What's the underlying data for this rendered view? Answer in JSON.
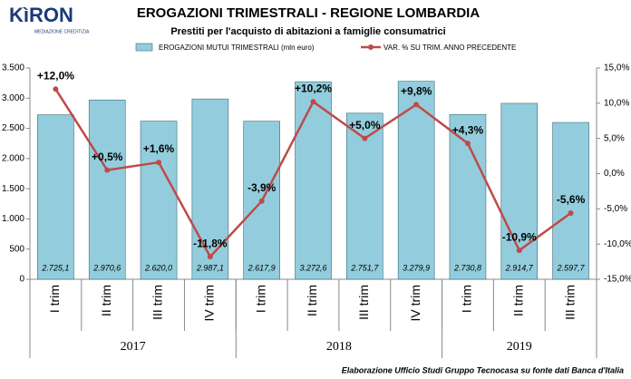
{
  "logo": {
    "name": "KìRON",
    "tagline": "MEDIAZIONE CREDITIZIA"
  },
  "footer": "Elaborazione  Ufficio  Studi Gruppo Tecnocasa  su fonte dati Banca d'Italia",
  "chart_data": {
    "type": "bar",
    "title": "EROGAZIONI TRIMESTRALI - REGIONE LOMBARDIA",
    "subtitle": "Prestiti per l'acquisto di abitazioni a famiglie consumatrici",
    "category_groups": [
      {
        "label": "2017",
        "categories": [
          "I trim",
          "II trim",
          "III trim",
          "IV trim"
        ]
      },
      {
        "label": "2018",
        "categories": [
          "I trim",
          "II trim",
          "III trim",
          "IV trim"
        ]
      },
      {
        "label": "2019",
        "categories": [
          "I trim",
          "II trim",
          "III trim"
        ]
      }
    ],
    "series": [
      {
        "name": "EROGAZIONI MUTUI TRIMESTRALI (mln euro)",
        "type": "bar",
        "color": "#93cddd",
        "values": [
          2725.1,
          2970.6,
          2620.0,
          2987.1,
          2617.9,
          3272.6,
          2751.7,
          3279.9,
          2730.8,
          2914.7,
          2597.7
        ],
        "value_labels": [
          "2.725,1",
          "2.970,6",
          "2.620,0",
          "2.987,1",
          "2.617,9",
          "3.272,6",
          "2.751,7",
          "3.279,9",
          "2.730,8",
          "2.914,7",
          "2.597,7"
        ]
      },
      {
        "name": "VAR. % SU TRIM. ANNO PRECEDENTE",
        "type": "line",
        "axis": "y2",
        "color": "#be4b48",
        "values": [
          12.0,
          0.5,
          1.6,
          -11.8,
          -3.9,
          10.2,
          5.0,
          9.8,
          4.3,
          -10.9,
          -5.6
        ],
        "value_labels": [
          "+12,0%",
          "+0,5%",
          "+1,6%",
          "-11,8%",
          "-3,9%",
          "+10,2%",
          "+5,0%",
          "+9,8%",
          "+4,3%",
          "-10,9%",
          "-5,6%"
        ]
      }
    ],
    "ylim": [
      0,
      3500
    ],
    "yticks": [
      0,
      500,
      {
        "value": 1000,
        "label": "1.000"
      },
      {
        "value": 1500,
        "label": "1.500"
      },
      {
        "value": 2000,
        "label": "2.000"
      },
      {
        "value": 2500,
        "label": "2.500"
      },
      {
        "value": 3000,
        "label": "3.000"
      },
      {
        "value": 3500,
        "label": "3.500"
      }
    ],
    "y2lim": [
      -15,
      15
    ],
    "y2ticks": [
      {
        "value": -15,
        "label": "-15,0%"
      },
      {
        "value": -10,
        "label": "-10,0%"
      },
      {
        "value": -5,
        "label": "-5,0%"
      },
      {
        "value": 0,
        "label": "0,0%"
      },
      {
        "value": 5,
        "label": "5,0%"
      },
      {
        "value": 10,
        "label": "10,0%"
      },
      {
        "value": 15,
        "label": "15,0%"
      }
    ],
    "grid": false
  }
}
